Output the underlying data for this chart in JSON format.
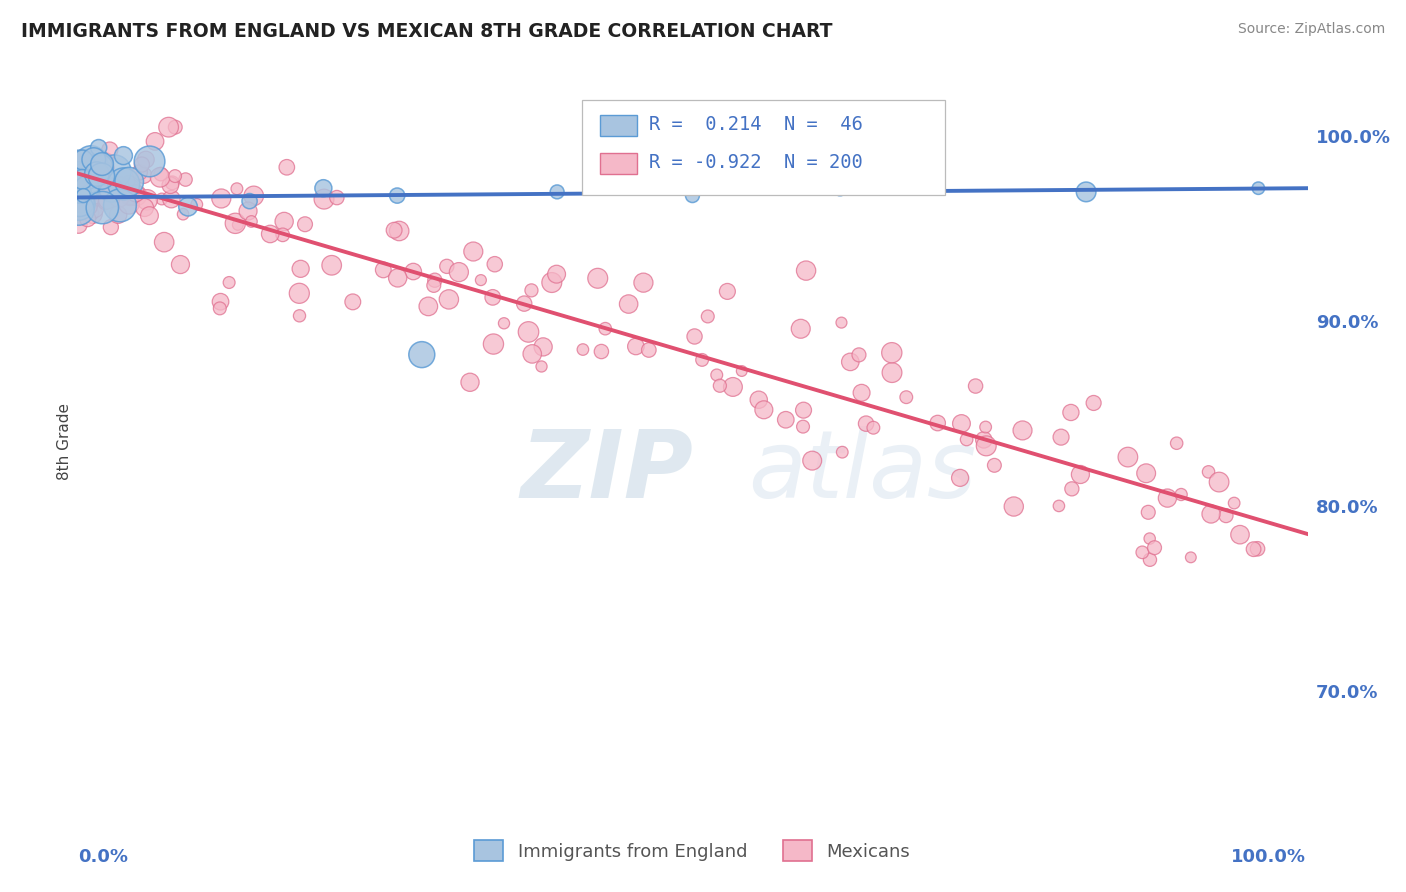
{
  "title": "IMMIGRANTS FROM ENGLAND VS MEXICAN 8TH GRADE CORRELATION CHART",
  "source": "Source: ZipAtlas.com",
  "ylabel": "8th Grade",
  "ytick_vals": [
    0.7,
    0.8,
    0.9,
    1.0
  ],
  "ytick_labels": [
    "70.0%",
    "80.0%",
    "90.0%",
    "100.0%"
  ],
  "ymin": 0.63,
  "ymax": 1.04,
  "xmin": 0.0,
  "xmax": 1.0,
  "r_england": 0.214,
  "n_england": 46,
  "r_mexican": -0.922,
  "n_mexican": 200,
  "blue_line_color": "#4472c4",
  "pink_line_color": "#e05070",
  "blue_fill": "#a8c4e0",
  "blue_edge": "#5b9bd5",
  "pink_fill": "#f5b8c8",
  "pink_edge": "#e07090",
  "watermark_color": "#c8d8ec",
  "background_color": "#ffffff",
  "grid_color": "#c8c8c8",
  "title_color": "#222222",
  "right_label_color": "#4472c4",
  "source_color": "#888888",
  "legend_label_color": "#555555",
  "blue_trend_intercept": 0.967,
  "blue_trend_slope": 0.005,
  "pink_trend_intercept": 0.98,
  "pink_trend_slope": -0.195
}
